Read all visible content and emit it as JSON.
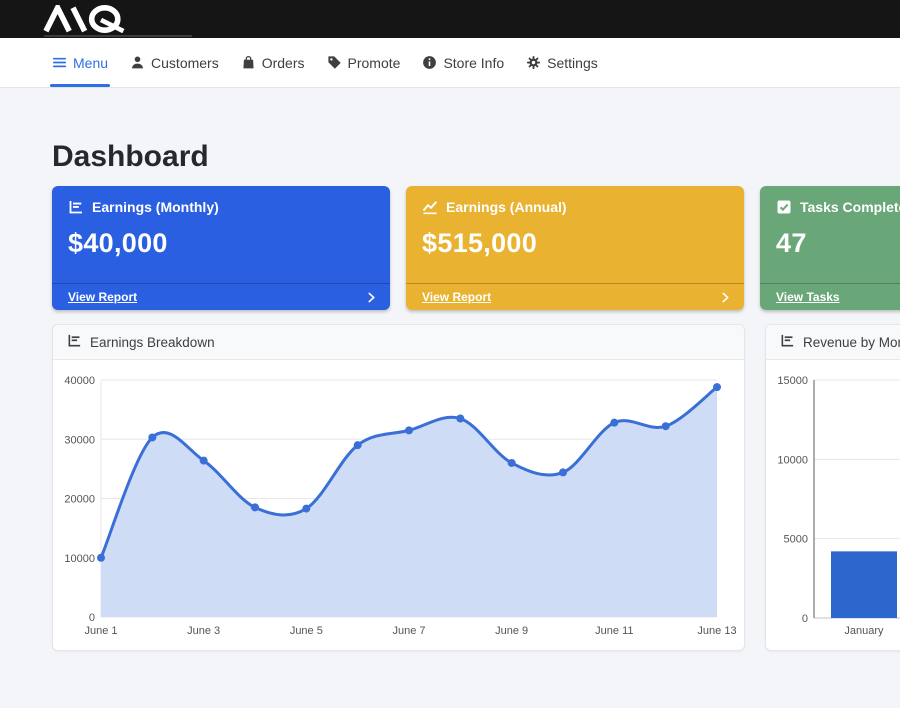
{
  "brand": {
    "logo_alt": "AQ"
  },
  "nav": {
    "items": [
      {
        "label": "Menu",
        "icon": "hamburger-icon",
        "active": true
      },
      {
        "label": "Customers",
        "icon": "person-icon",
        "active": false
      },
      {
        "label": "Orders",
        "icon": "bag-icon",
        "active": false
      },
      {
        "label": "Promote",
        "icon": "tag-icon",
        "active": false
      },
      {
        "label": "Store Info",
        "icon": "info-icon",
        "active": false
      },
      {
        "label": "Settings",
        "icon": "gear-icon",
        "active": false
      }
    ]
  },
  "page": {
    "title": "Dashboard"
  },
  "stat_cards": [
    {
      "id": "earnings-monthly",
      "title": "Earnings (Monthly)",
      "value": "$40,000",
      "footer_label": "View Report",
      "color": "#2a5fe2",
      "icon": "bar-chart-icon"
    },
    {
      "id": "earnings-annual",
      "title": "Earnings (Annual)",
      "value": "$515,000",
      "footer_label": "View Report",
      "color": "#eab231",
      "icon": "line-chart-icon"
    },
    {
      "id": "tasks-completed",
      "title": "Tasks Completed",
      "value": "47",
      "footer_label": "View Tasks",
      "color": "#6aa778",
      "icon": "check-square-icon"
    }
  ],
  "chart_data": [
    {
      "type": "area",
      "title": "Earnings Breakdown",
      "x": [
        "June 1",
        "June 2",
        "June 3",
        "June 4",
        "June 5",
        "June 6",
        "June 7",
        "June 8",
        "June 9",
        "June 10",
        "June 11",
        "June 12",
        "June 13"
      ],
      "values": [
        10000,
        30300,
        26400,
        18500,
        18300,
        29000,
        31500,
        33500,
        26000,
        24400,
        32800,
        32200,
        38800
      ],
      "ylim": [
        0,
        40000
      ],
      "yticks": [
        0,
        10000,
        20000,
        30000,
        40000
      ],
      "xtick_labels": [
        "June 1",
        "June 3",
        "June 5",
        "June 7",
        "June 9",
        "June 11",
        "June 13"
      ],
      "grid": true,
      "legend": "none",
      "line_color": "#3a6fd6",
      "fill_color": "#cfdcf5"
    },
    {
      "type": "bar",
      "title": "Revenue by Month",
      "categories": [
        "January"
      ],
      "values": [
        4200
      ],
      "ylim": [
        0,
        15000
      ],
      "yticks": [
        0,
        5000,
        10000,
        15000
      ],
      "grid": true,
      "legend": "none",
      "bar_color": "#2d67cd"
    }
  ]
}
